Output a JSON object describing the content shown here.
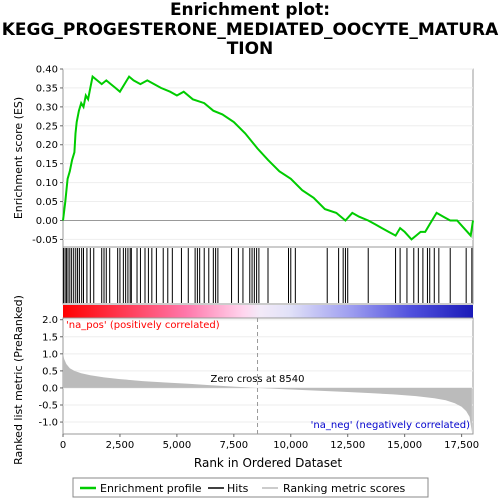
{
  "title_lines": [
    "Enrichment plot:",
    "KEGG_PROGESTERONE_MEDIATED_OOCYTE_MATURA",
    "TION"
  ],
  "colors": {
    "es_line": "#00cc00",
    "hits": "#000000",
    "metric_fill": "#bbbbbb",
    "pos_label": "#ff0000",
    "neg_label": "#0000cc"
  },
  "chart_data": [
    {
      "type": "line",
      "name": "enrichment-score",
      "ylabel": "Enrichment score (ES)",
      "xlim": [
        0,
        18000
      ],
      "ylim": [
        -0.07,
        0.4
      ],
      "yticks": [
        "0.40",
        "0.35",
        "0.30",
        "0.25",
        "0.20",
        "0.15",
        "0.10",
        "0.05",
        "0.00",
        "-0.05"
      ],
      "points": [
        [
          0,
          0.0
        ],
        [
          100,
          0.05
        ],
        [
          200,
          0.11
        ],
        [
          300,
          0.13
        ],
        [
          400,
          0.16
        ],
        [
          500,
          0.18
        ],
        [
          550,
          0.23
        ],
        [
          600,
          0.26
        ],
        [
          700,
          0.29
        ],
        [
          800,
          0.31
        ],
        [
          900,
          0.3
        ],
        [
          1000,
          0.33
        ],
        [
          1100,
          0.32
        ],
        [
          1200,
          0.35
        ],
        [
          1300,
          0.38
        ],
        [
          1500,
          0.37
        ],
        [
          1700,
          0.36
        ],
        [
          1900,
          0.37
        ],
        [
          2100,
          0.36
        ],
        [
          2300,
          0.35
        ],
        [
          2500,
          0.34
        ],
        [
          2700,
          0.36
        ],
        [
          2900,
          0.38
        ],
        [
          3100,
          0.37
        ],
        [
          3400,
          0.36
        ],
        [
          3700,
          0.37
        ],
        [
          4000,
          0.36
        ],
        [
          4300,
          0.35
        ],
        [
          4700,
          0.34
        ],
        [
          5000,
          0.33
        ],
        [
          5300,
          0.34
        ],
        [
          5700,
          0.32
        ],
        [
          6200,
          0.31
        ],
        [
          6600,
          0.29
        ],
        [
          7000,
          0.28
        ],
        [
          7500,
          0.26
        ],
        [
          8000,
          0.23
        ],
        [
          8540,
          0.19
        ],
        [
          9000,
          0.16
        ],
        [
          9500,
          0.13
        ],
        [
          10000,
          0.11
        ],
        [
          10500,
          0.08
        ],
        [
          11000,
          0.06
        ],
        [
          11500,
          0.03
        ],
        [
          12000,
          0.02
        ],
        [
          12400,
          0.0
        ],
        [
          12700,
          0.02
        ],
        [
          13000,
          0.01
        ],
        [
          13400,
          0.0
        ],
        [
          13700,
          -0.01
        ],
        [
          14000,
          -0.02
        ],
        [
          14300,
          -0.03
        ],
        [
          14600,
          -0.04
        ],
        [
          14800,
          -0.02
        ],
        [
          15000,
          -0.03
        ],
        [
          15300,
          -0.05
        ],
        [
          15500,
          -0.04
        ],
        [
          15700,
          -0.03
        ],
        [
          15900,
          -0.03
        ],
        [
          16100,
          -0.01
        ],
        [
          16400,
          0.02
        ],
        [
          16700,
          0.01
        ],
        [
          17000,
          0.0
        ],
        [
          17300,
          0.0
        ],
        [
          17600,
          -0.02
        ],
        [
          17900,
          -0.04
        ],
        [
          18000,
          0.0
        ]
      ]
    },
    {
      "type": "bar",
      "name": "hits",
      "positions": [
        20,
        90,
        150,
        220,
        300,
        380,
        470,
        560,
        640,
        720,
        820,
        900,
        1050,
        1200,
        1350,
        1700,
        1800,
        1900,
        2050,
        2400,
        2500,
        2650,
        2750,
        2850,
        2950,
        3000,
        3250,
        3400,
        3600,
        3750,
        3900,
        4100,
        4400,
        4600,
        4800,
        5200,
        5500,
        5800,
        5900,
        6000,
        6200,
        6400,
        6600,
        6700,
        6800,
        7400,
        7700,
        7900,
        8200,
        8300,
        8400,
        8500,
        8600,
        9000,
        9900,
        10000,
        10200,
        11600,
        12100,
        12300,
        12400,
        12500,
        13400,
        14600,
        14800,
        15100,
        15400,
        15600,
        15800,
        16000,
        16100,
        16300,
        16500,
        17000,
        17700,
        17950
      ]
    },
    {
      "type": "area",
      "name": "ranked-list-metric",
      "ylabel": "Ranked list metric (PreRanked)",
      "xlabel": "Rank in Ordered Dataset",
      "xlim": [
        0,
        18000
      ],
      "ylim": [
        -1.35,
        2.05
      ],
      "yticks": [
        "2.0",
        "1.5",
        "1.0",
        "0.5",
        "0.0",
        "-0.5",
        "-1.0"
      ],
      "xticks": [
        "0",
        "2,500",
        "5,000",
        "7,500",
        "10,000",
        "12,500",
        "15,000",
        "17,500"
      ],
      "points": [
        [
          0,
          1.05
        ],
        [
          50,
          0.85
        ],
        [
          150,
          0.7
        ],
        [
          300,
          0.58
        ],
        [
          500,
          0.5
        ],
        [
          800,
          0.43
        ],
        [
          1200,
          0.37
        ],
        [
          1800,
          0.31
        ],
        [
          2500,
          0.26
        ],
        [
          3500,
          0.2
        ],
        [
          4500,
          0.16
        ],
        [
          5500,
          0.12
        ],
        [
          6500,
          0.08
        ],
        [
          7500,
          0.04
        ],
        [
          8540,
          0.0
        ],
        [
          9500,
          -0.03
        ],
        [
          10500,
          -0.06
        ],
        [
          11500,
          -0.09
        ],
        [
          12500,
          -0.12
        ],
        [
          13500,
          -0.15
        ],
        [
          14500,
          -0.19
        ],
        [
          15500,
          -0.24
        ],
        [
          16300,
          -0.3
        ],
        [
          16800,
          -0.36
        ],
        [
          17200,
          -0.45
        ],
        [
          17500,
          -0.55
        ],
        [
          17700,
          -0.68
        ],
        [
          17850,
          -0.85
        ],
        [
          17950,
          -1.3
        ]
      ],
      "zero_cross_label": "Zero cross at 8540",
      "zero_cross": 8540,
      "pos_label": "'na_pos' (positively correlated)",
      "neg_label": "'na_neg' (negatively correlated)"
    }
  ],
  "legend": {
    "items": [
      {
        "label": "Enrichment profile"
      },
      {
        "label": "Hits"
      },
      {
        "label": "Ranking metric scores"
      }
    ]
  }
}
